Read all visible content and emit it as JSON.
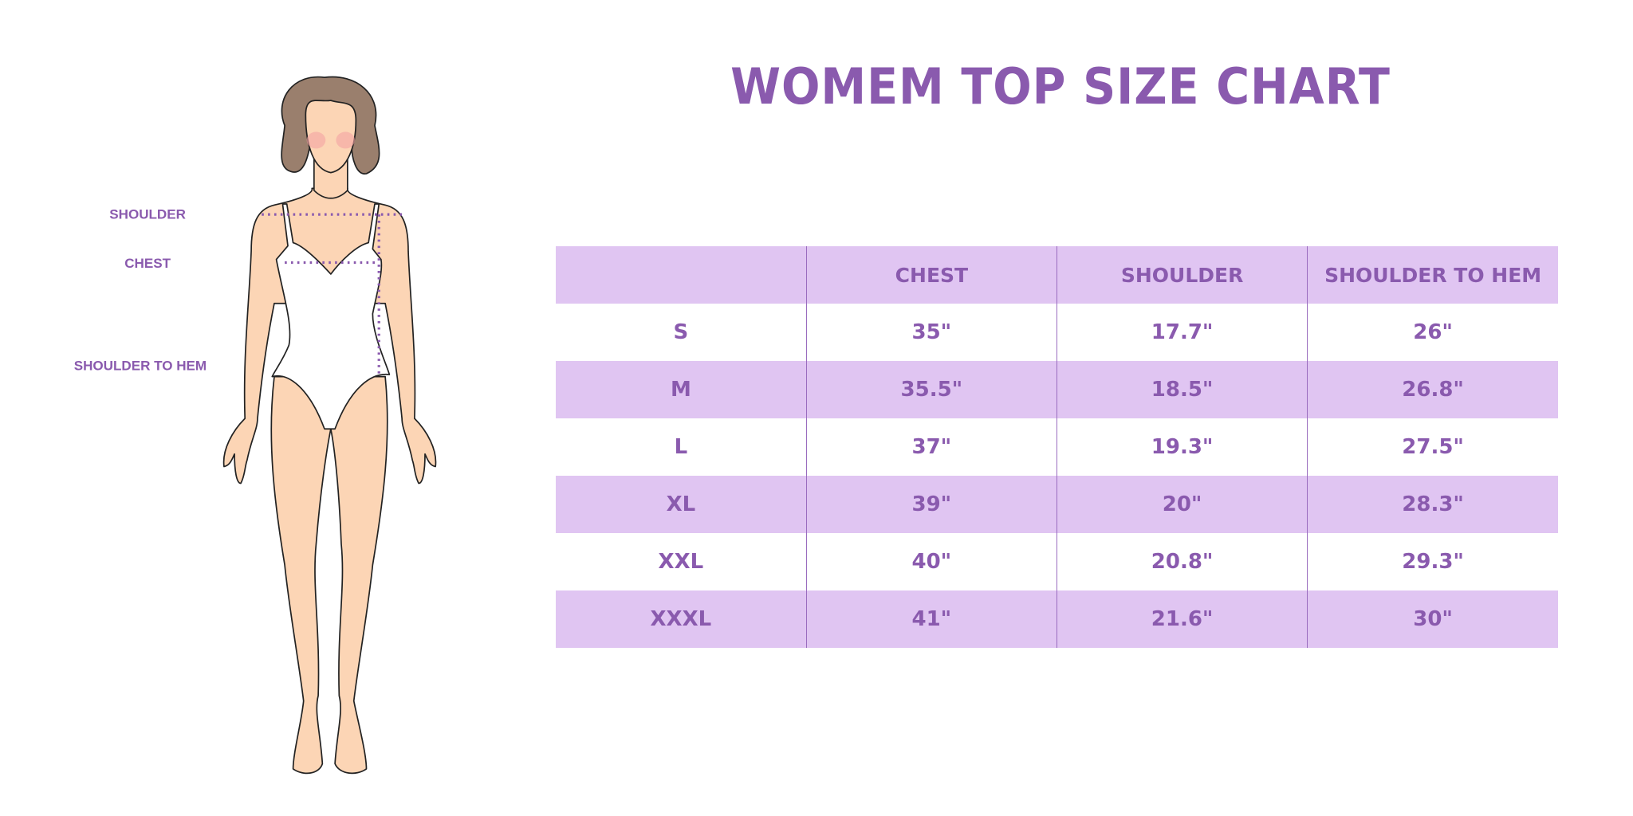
{
  "title": "WOMEM TOP SIZE CHART",
  "figure_labels": {
    "shoulder": "SHOULDER",
    "chest": "CHEST",
    "shoulder_to_hem": "SHOULDER TO HEM"
  },
  "colors": {
    "accent": "#8a5aae",
    "row_shade": "#e0c5f2",
    "skin": "#fcd5b5",
    "hair": "#9a7f6d"
  },
  "table": {
    "headers": [
      "",
      "CHEST",
      "SHOULDER",
      "SHOULDER TO HEM"
    ],
    "rows": [
      [
        "S",
        "35\"",
        "17.7\"",
        "26\""
      ],
      [
        "M",
        "35.5\"",
        "18.5\"",
        "26.8\""
      ],
      [
        "L",
        "37\"",
        "19.3\"",
        "27.5\""
      ],
      [
        "XL",
        "39\"",
        "20\"",
        "28.3\""
      ],
      [
        "XXL",
        "40\"",
        "20.8\"",
        "29.3\""
      ],
      [
        "XXXL",
        "41\"",
        "21.6\"",
        "30\""
      ]
    ]
  }
}
